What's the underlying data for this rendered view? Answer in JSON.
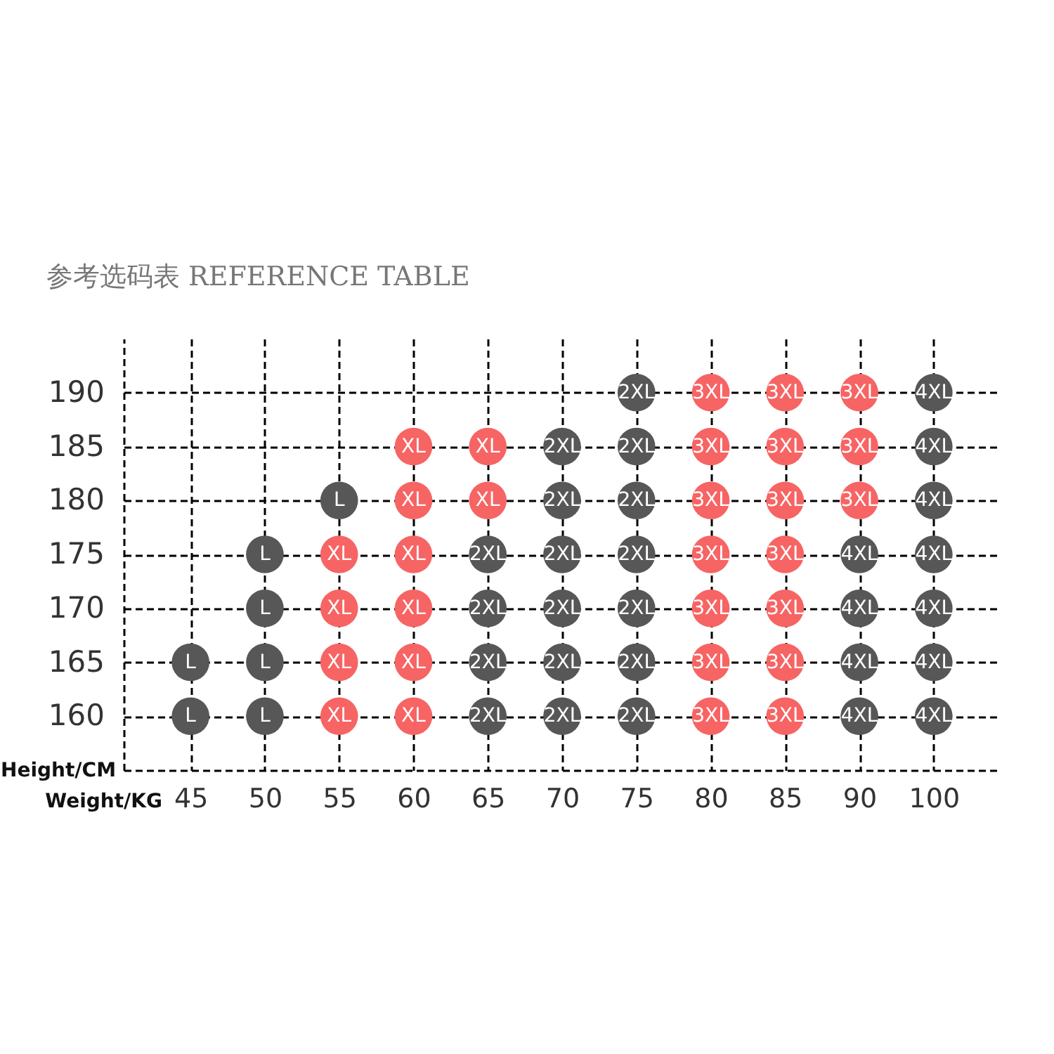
{
  "chart_data": {
    "type": "scatter",
    "title": "参考选码表 REFERENCE TABLE",
    "xlabel": "Weight/KG",
    "ylabel": "Height/CM",
    "categories": [
      "45",
      "50",
      "55",
      "60",
      "65",
      "70",
      "75",
      "80",
      "85",
      "90",
      "100"
    ],
    "ylim": [
      155,
      195
    ],
    "yticks": [
      160,
      165,
      170,
      175,
      180,
      185,
      190
    ],
    "grid": true,
    "marker": "circle",
    "series": [
      {
        "name": "L",
        "color": "#575757",
        "x": [
          "55",
          "50",
          "50",
          "45",
          "50",
          "45",
          "50"
        ],
        "values": [
          180,
          175,
          170,
          165,
          165,
          160,
          160
        ]
      },
      {
        "name": "XL",
        "color": "#f76464",
        "x": [
          "60",
          "65",
          "60",
          "65",
          "55",
          "60",
          "55",
          "60",
          "55",
          "60",
          "55",
          "60"
        ],
        "values": [
          185,
          185,
          180,
          180,
          175,
          175,
          170,
          170,
          165,
          165,
          160,
          160
        ]
      },
      {
        "name": "2XL",
        "color": "#575757",
        "x": [
          "75",
          "70",
          "75",
          "70",
          "75",
          "65",
          "70",
          "75",
          "65",
          "70",
          "75",
          "65",
          "70",
          "75",
          "65",
          "70",
          "75"
        ],
        "values": [
          190,
          185,
          185,
          180,
          180,
          175,
          175,
          175,
          170,
          170,
          170,
          165,
          165,
          165,
          160,
          160,
          160
        ]
      },
      {
        "name": "3XL",
        "color": "#f76464",
        "x": [
          "80",
          "85",
          "90",
          "80",
          "85",
          "90",
          "80",
          "85",
          "90",
          "80",
          "85",
          "80",
          "85",
          "80",
          "85",
          "80",
          "85"
        ],
        "values": [
          190,
          190,
          190,
          185,
          185,
          185,
          180,
          180,
          180,
          175,
          175,
          170,
          170,
          165,
          165,
          160,
          160
        ]
      },
      {
        "name": "4XL",
        "color": "#575757",
        "x": [
          "100",
          "100",
          "100",
          "90",
          "100",
          "90",
          "100",
          "90",
          "100",
          "90",
          "100"
        ],
        "values": [
          190,
          185,
          180,
          175,
          175,
          170,
          170,
          165,
          165,
          160,
          160
        ]
      }
    ]
  }
}
